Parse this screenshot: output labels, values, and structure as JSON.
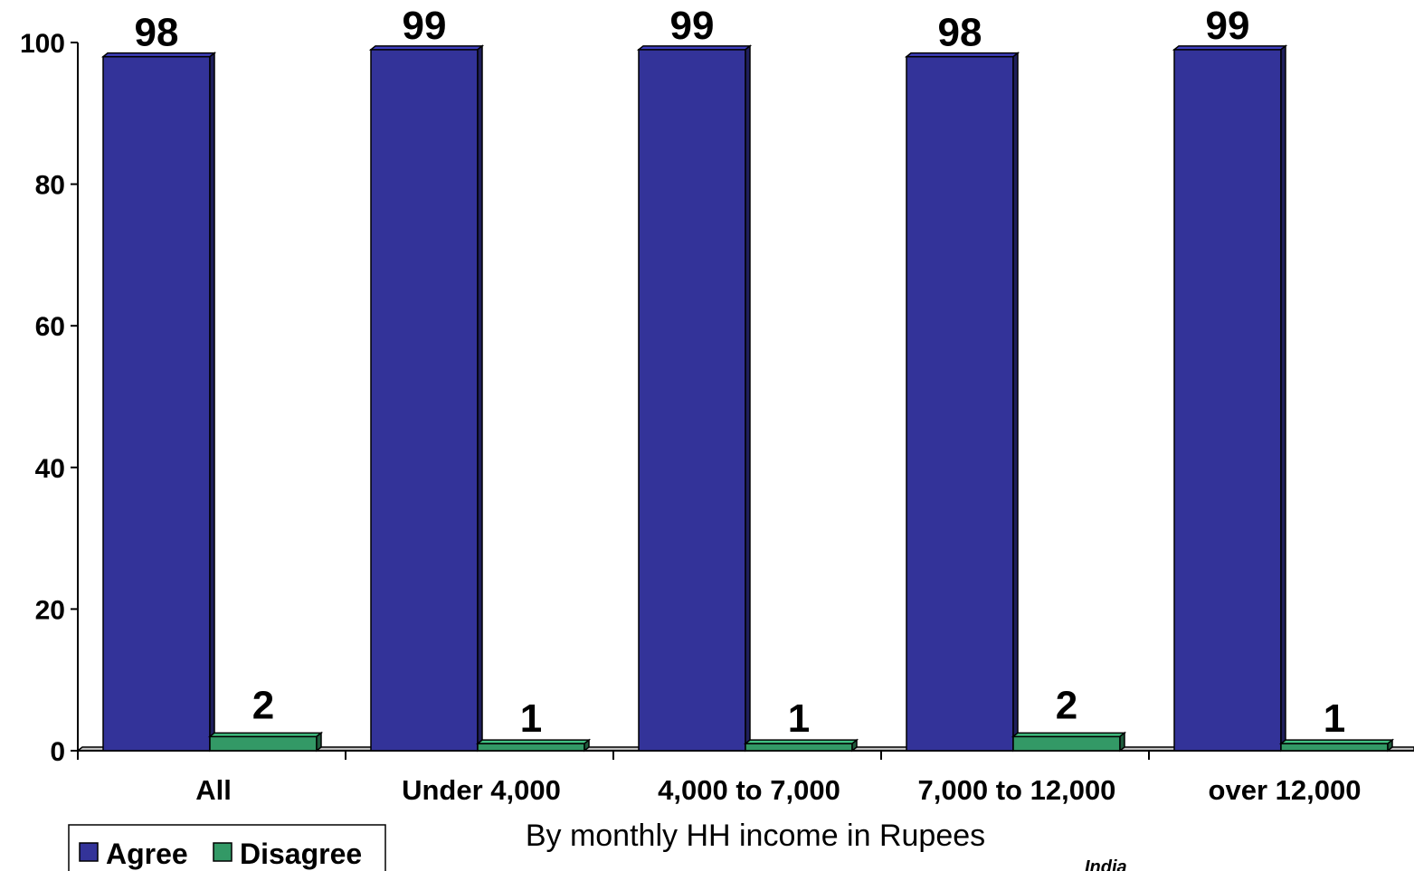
{
  "chart_data": {
    "type": "bar",
    "categories": [
      "All",
      "Under 4,000",
      "4,000 to 7,000",
      "7,000 to 12,000",
      "over 12,000"
    ],
    "series": [
      {
        "name": "Agree",
        "values": [
          98,
          99,
          99,
          98,
          99
        ],
        "color": "#333399"
      },
      {
        "name": "Disagree",
        "values": [
          2,
          1,
          1,
          2,
          1
        ],
        "color": "#339966"
      }
    ],
    "title": "",
    "xlabel": "By monthly HH income in Rupees",
    "ylabel": "",
    "ylim": [
      0,
      100
    ],
    "yticks": [
      "0",
      "20",
      "40",
      "60",
      "80",
      "100"
    ],
    "grid": false,
    "legend_position": "bottom-left",
    "data_labels": true,
    "footnote": "India"
  }
}
